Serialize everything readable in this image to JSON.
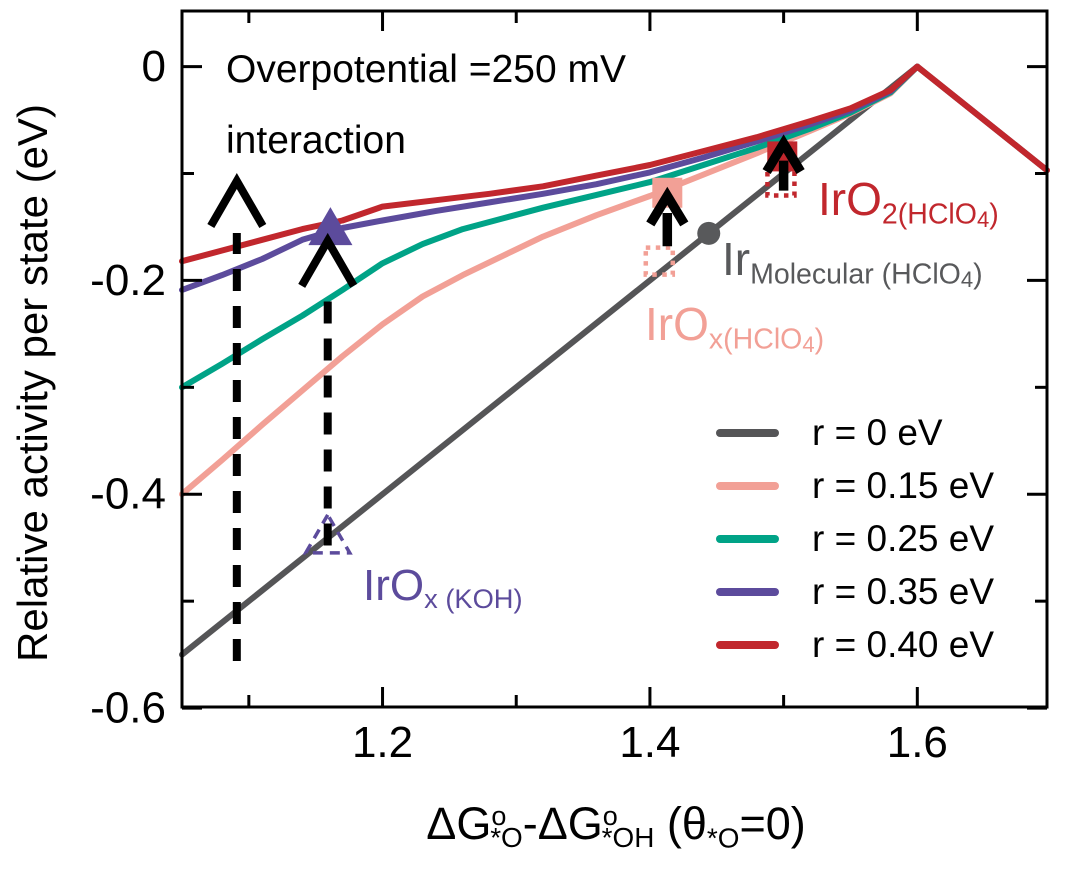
{
  "chart_data": {
    "type": "line",
    "note": {
      "line1": "Overpotential =250 mV",
      "line2": "interaction"
    },
    "ylabel": "Relative activity per state (eV)",
    "xlabel_rich": [
      [
        "ΔG",
        0
      ],
      [
        "o",
        -1
      ],
      [
        "*O",
        1
      ],
      [
        "-ΔG",
        0
      ],
      [
        "o",
        -1
      ],
      [
        "*OH",
        1
      ],
      [
        " (θ",
        0
      ],
      [
        "*O",
        1
      ],
      [
        "=0)",
        0
      ]
    ],
    "xlim": [
      1.05,
      1.697
    ],
    "ylim": [
      -0.599,
      0.052
    ],
    "grid": false,
    "axis_color": "#000000",
    "background": "#ffffff",
    "xticks": {
      "major": [
        1.2,
        1.4,
        1.6
      ],
      "minor": [
        1.1,
        1.3,
        1.5
      ],
      "labels": [
        "1.2",
        "1.4",
        "1.6"
      ]
    },
    "yticks": {
      "major": [
        0,
        -0.2,
        -0.4,
        -0.6
      ],
      "minor": [
        -0.1,
        -0.3,
        -0.5
      ],
      "labels": [
        "0",
        "-0.2",
        "-0.4",
        "-0.6"
      ]
    },
    "legend_position": "lower-right",
    "series": [
      {
        "name": "r = 0 eV",
        "color": "#555557",
        "points": [
          [
            1.05,
            -0.55
          ],
          [
            1.3,
            -0.3
          ],
          [
            1.6,
            0.0
          ],
          [
            1.697,
            -0.097
          ]
        ]
      },
      {
        "name": "r = 0.15 eV",
        "color": "#F2A096",
        "points": [
          [
            1.05,
            -0.4
          ],
          [
            1.08,
            -0.368
          ],
          [
            1.11,
            -0.335
          ],
          [
            1.14,
            -0.303
          ],
          [
            1.17,
            -0.271
          ],
          [
            1.2,
            -0.241
          ],
          [
            1.23,
            -0.215
          ],
          [
            1.26,
            -0.195
          ],
          [
            1.29,
            -0.177
          ],
          [
            1.32,
            -0.159
          ],
          [
            1.36,
            -0.139
          ],
          [
            1.4,
            -0.121
          ],
          [
            1.44,
            -0.101
          ],
          [
            1.48,
            -0.081
          ],
          [
            1.52,
            -0.06
          ],
          [
            1.55,
            -0.044
          ],
          [
            1.58,
            -0.025
          ],
          [
            1.6,
            0.0
          ]
        ]
      },
      {
        "name": "r = 0.25 eV",
        "color": "#00A387",
        "points": [
          [
            1.05,
            -0.3
          ],
          [
            1.08,
            -0.278
          ],
          [
            1.11,
            -0.255
          ],
          [
            1.14,
            -0.233
          ],
          [
            1.17,
            -0.209
          ],
          [
            1.2,
            -0.184
          ],
          [
            1.23,
            -0.166
          ],
          [
            1.26,
            -0.152
          ],
          [
            1.29,
            -0.142
          ],
          [
            1.32,
            -0.132
          ],
          [
            1.36,
            -0.12
          ],
          [
            1.4,
            -0.108
          ],
          [
            1.44,
            -0.092
          ],
          [
            1.48,
            -0.076
          ],
          [
            1.52,
            -0.058
          ],
          [
            1.55,
            -0.043
          ],
          [
            1.58,
            -0.024
          ],
          [
            1.6,
            0.0
          ]
        ]
      },
      {
        "name": "r = 0.35 eV",
        "color": "#5C4B9C",
        "points": [
          [
            1.05,
            -0.209
          ],
          [
            1.08,
            -0.195
          ],
          [
            1.11,
            -0.18
          ],
          [
            1.14,
            -0.162
          ],
          [
            1.17,
            -0.151
          ],
          [
            1.2,
            -0.144
          ],
          [
            1.24,
            -0.135
          ],
          [
            1.28,
            -0.127
          ],
          [
            1.32,
            -0.119
          ],
          [
            1.36,
            -0.11
          ],
          [
            1.4,
            -0.099
          ],
          [
            1.44,
            -0.085
          ],
          [
            1.48,
            -0.07
          ],
          [
            1.52,
            -0.054
          ],
          [
            1.55,
            -0.041
          ],
          [
            1.58,
            -0.023
          ],
          [
            1.6,
            0.0
          ]
        ]
      },
      {
        "name": "r = 0.40 eV",
        "color": "#C1272D",
        "points": [
          [
            1.05,
            -0.182
          ],
          [
            1.08,
            -0.172
          ],
          [
            1.11,
            -0.162
          ],
          [
            1.14,
            -0.152
          ],
          [
            1.17,
            -0.144
          ],
          [
            1.2,
            -0.131
          ],
          [
            1.24,
            -0.125
          ],
          [
            1.28,
            -0.119
          ],
          [
            1.32,
            -0.112
          ],
          [
            1.36,
            -0.102
          ],
          [
            1.4,
            -0.092
          ],
          [
            1.44,
            -0.079
          ],
          [
            1.48,
            -0.066
          ],
          [
            1.52,
            -0.051
          ],
          [
            1.55,
            -0.039
          ],
          [
            1.58,
            -0.022
          ],
          [
            1.6,
            0.0
          ],
          [
            1.697,
            -0.097
          ]
        ]
      }
    ],
    "markers": [
      {
        "id": "irox-koh-start",
        "shape": "triangle-dashed",
        "color": "#5C4B9C",
        "x": 1.159,
        "y": -0.438,
        "size": 40
      },
      {
        "id": "irox-koh",
        "shape": "triangle",
        "color": "#5C4B9C",
        "x": 1.161,
        "y": -0.151,
        "size": 38
      },
      {
        "id": "irox-hclo4-start",
        "shape": "square-dotted",
        "color": "#F2A096",
        "x": 1.407,
        "y": -0.182,
        "size": 27
      },
      {
        "id": "irox-hclo4",
        "shape": "square",
        "color": "#F2A096",
        "x": 1.413,
        "y": -0.118,
        "size": 30
      },
      {
        "id": "ir-molecular",
        "shape": "circle",
        "color": "#58595B",
        "x": 1.444,
        "y": -0.156,
        "size": 23
      },
      {
        "id": "iro2-hclo4-start",
        "shape": "square-dotted",
        "color": "#C1272D",
        "x": 1.498,
        "y": -0.108,
        "size": 27
      },
      {
        "id": "iro2-hclo4",
        "shape": "square",
        "color": "#C1272D",
        "x": 1.499,
        "y": -0.084,
        "size": 30
      }
    ],
    "arrows": [
      {
        "id": "interaction-arrow-left",
        "style": "dashed",
        "x": 1.091,
        "y_from": -0.556,
        "y_tip": -0.107
      },
      {
        "id": "interaction-arrow-koh",
        "style": "dashed",
        "x": 1.159,
        "y_from": -0.448,
        "y_tip": -0.163
      },
      {
        "id": "shift-arrow-irox-hclo4",
        "style": "solid",
        "x": 1.413,
        "y_from": -0.168,
        "y_tip": -0.121
      },
      {
        "id": "shift-arrow-iro2-hclo4",
        "style": "solid",
        "x": 1.5,
        "y_from": -0.116,
        "y_tip": -0.072
      }
    ],
    "annotations": [
      {
        "id": "iro2-hclo4",
        "color": "#C1272D",
        "px": [
          818,
          176
        ],
        "size": 46,
        "rich": [
          [
            "IrO",
            0
          ],
          [
            "2(HClO",
            1
          ],
          [
            "4",
            2
          ],
          [
            ")",
            1
          ]
        ]
      },
      {
        "id": "ir-molecular-hclo4",
        "color": "#58595B",
        "px": [
          722,
          236
        ],
        "size": 46,
        "rich": [
          [
            "Ir",
            0
          ],
          [
            "Molecular (HClO",
            1
          ],
          [
            "4",
            2
          ],
          [
            ")",
            1
          ]
        ]
      },
      {
        "id": "irox-hclo4",
        "color": "#F2A096",
        "px": [
          645,
          301
        ],
        "size": 46,
        "rich": [
          [
            "IrO",
            0
          ],
          [
            "x(HClO",
            1
          ],
          [
            "4",
            2
          ],
          [
            ")",
            1
          ]
        ]
      },
      {
        "id": "irox-koh",
        "color": "#5C4B9C",
        "px": [
          363,
          564
        ],
        "size": 44,
        "rich": [
          [
            "IrO",
            0
          ],
          [
            "x (KOH)",
            1
          ]
        ]
      }
    ]
  }
}
